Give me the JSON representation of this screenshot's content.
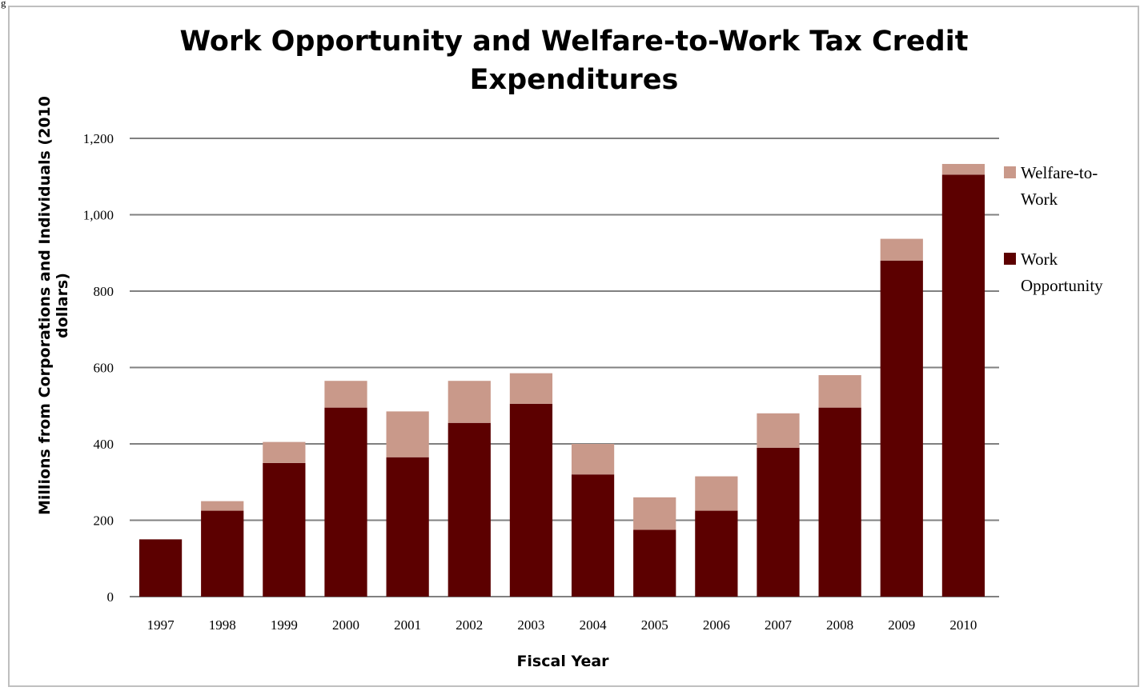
{
  "corner_text": "g",
  "colors": {
    "work_opportunity": "#5c0000",
    "welfare_to_work": "#c9998a",
    "grid": "#808080"
  },
  "chart_data": {
    "type": "bar",
    "stacked": true,
    "title_lines": [
      "Work Opportunity and Welfare-to-Work Tax Credit",
      "Expenditures"
    ],
    "xlabel": "Fiscal Year",
    "ylabel_lines": [
      "Millions from Corporations and Individuals (2010",
      "dollars)"
    ],
    "ylim": [
      0,
      1200
    ],
    "yticks": [
      0,
      200,
      400,
      600,
      800,
      1000,
      1200
    ],
    "ytick_labels": [
      "0",
      "200",
      "400",
      "600",
      "800",
      "1,000",
      "1,200"
    ],
    "grid": true,
    "legend_position": "right",
    "categories": [
      "1997",
      "1998",
      "1999",
      "2000",
      "2001",
      "2002",
      "2003",
      "2004",
      "2005",
      "2006",
      "2007",
      "2008",
      "2009",
      "2010"
    ],
    "series": [
      {
        "name": "Work Opportunity",
        "legend_lines": [
          "Work",
          "Opportunity"
        ],
        "values": [
          150,
          225,
          350,
          495,
          365,
          455,
          505,
          320,
          175,
          225,
          390,
          495,
          880,
          1105
        ]
      },
      {
        "name": "Welfare-to-Work",
        "legend_lines": [
          "Welfare-to-",
          "Work"
        ],
        "values": [
          0,
          25,
          55,
          70,
          120,
          110,
          80,
          80,
          85,
          90,
          90,
          85,
          57,
          28
        ]
      }
    ]
  }
}
